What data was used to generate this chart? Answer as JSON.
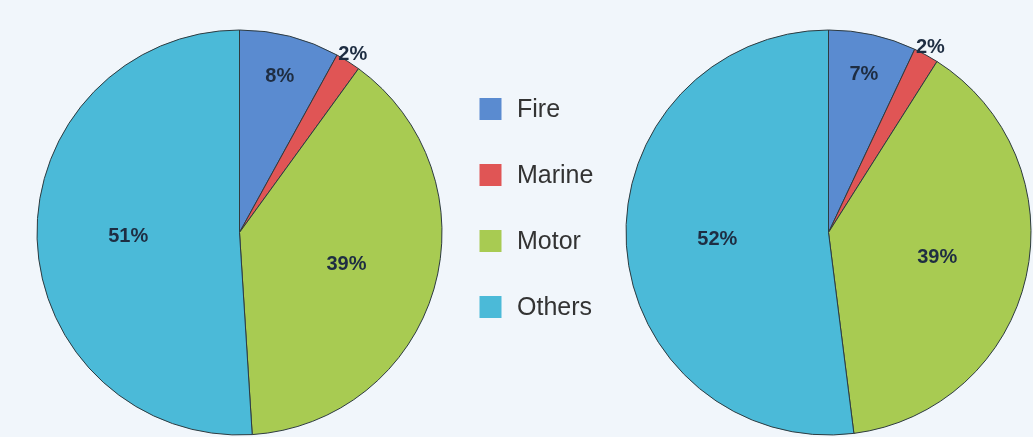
{
  "chart_data": {
    "type": "pie",
    "categories": [
      "Fire",
      "Marine",
      "Motor",
      "Others"
    ],
    "colors": [
      "#5a8bd0",
      "#e05555",
      "#a8cb52",
      "#4bbad8"
    ],
    "legend": "center",
    "series": [
      {
        "values": [
          8,
          2,
          39,
          51
        ],
        "value_labels": [
          "8%",
          "2%",
          "39%",
          "51%"
        ]
      },
      {
        "values": [
          7,
          2,
          39,
          52
        ],
        "value_labels": [
          "7%",
          "2%",
          "39%",
          "52%"
        ]
      }
    ]
  }
}
